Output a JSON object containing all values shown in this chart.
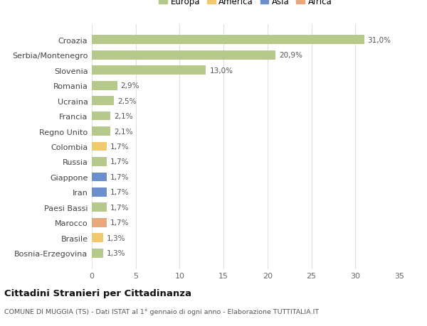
{
  "categories": [
    "Bosnia-Erzegovina",
    "Brasile",
    "Marocco",
    "Paesi Bassi",
    "Iran",
    "Giappone",
    "Russia",
    "Colombia",
    "Regno Unito",
    "Francia",
    "Ucraina",
    "Romania",
    "Slovenia",
    "Serbia/Montenegro",
    "Croazia"
  ],
  "values": [
    1.3,
    1.3,
    1.7,
    1.7,
    1.7,
    1.7,
    1.7,
    1.7,
    2.1,
    2.1,
    2.5,
    2.9,
    13.0,
    20.9,
    31.0
  ],
  "labels": [
    "1,3%",
    "1,3%",
    "1,7%",
    "1,7%",
    "1,7%",
    "1,7%",
    "1,7%",
    "1,7%",
    "2,1%",
    "2,1%",
    "2,5%",
    "2,9%",
    "13,0%",
    "20,9%",
    "31,0%"
  ],
  "colors": [
    "#b5c98a",
    "#f0c96e",
    "#e8a87c",
    "#b5c98a",
    "#6b8fcc",
    "#6b8fcc",
    "#b5c98a",
    "#f0c96e",
    "#b5c98a",
    "#b5c98a",
    "#b5c98a",
    "#b5c98a",
    "#b5c98a",
    "#b5c98a",
    "#b5c98a"
  ],
  "legend_labels": [
    "Europa",
    "America",
    "Asia",
    "Africa"
  ],
  "legend_colors": [
    "#b5c98a",
    "#f0c96e",
    "#6b8fcc",
    "#e8a87c"
  ],
  "title": "Cittadini Stranieri per Cittadinanza",
  "subtitle": "COMUNE DI MUGGIA (TS) - Dati ISTAT al 1° gennaio di ogni anno - Elaborazione TUTTITALIA.IT",
  "xlim": [
    0,
    35
  ],
  "xticks": [
    0,
    5,
    10,
    15,
    20,
    25,
    30,
    35
  ],
  "background_color": "#ffffff",
  "grid_color": "#e0e0e0",
  "bar_height": 0.6
}
